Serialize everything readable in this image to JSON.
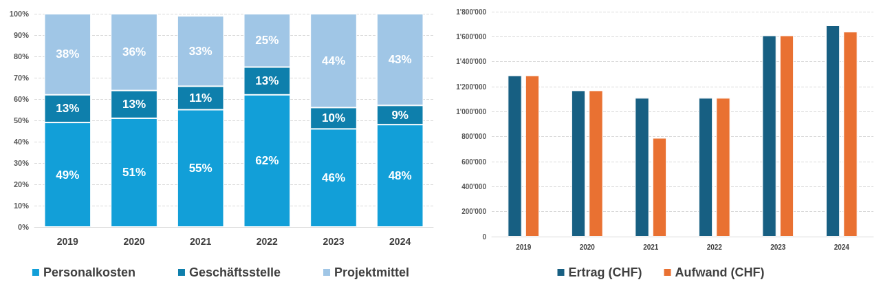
{
  "chart_data": [
    {
      "type": "bar",
      "stacked": true,
      "categories": [
        "2019",
        "2020",
        "2021",
        "2022",
        "2023",
        "2024"
      ],
      "series": [
        {
          "name": "Personalkosten",
          "color": "#129fd8",
          "values": [
            49,
            51,
            55,
            62,
            46,
            48
          ],
          "value_labels": [
            "49%",
            "51%",
            "55%",
            "62%",
            "46%",
            "48%"
          ]
        },
        {
          "name": "Geschäftsstelle",
          "color": "#0e7fac",
          "values": [
            13,
            13,
            11,
            13,
            10,
            9
          ],
          "value_labels": [
            "13%",
            "13%",
            "11%",
            "13%",
            "10%",
            "9%"
          ]
        },
        {
          "name": "Projektmittel",
          "color": "#a0c6e6",
          "values": [
            38,
            36,
            33,
            25,
            44,
            43
          ],
          "value_labels": [
            "38%",
            "36%",
            "33%",
            "25%",
            "44%",
            "43%"
          ]
        }
      ],
      "ylim": [
        0,
        100
      ],
      "yticks": [
        {
          "value": 0,
          "label": "0%"
        },
        {
          "value": 10,
          "label": "10%"
        },
        {
          "value": 20,
          "label": "20%"
        },
        {
          "value": 30,
          "label": "30%"
        },
        {
          "value": 40,
          "label": "40%"
        },
        {
          "value": 50,
          "label": "50%"
        },
        {
          "value": 60,
          "label": "60%"
        },
        {
          "value": 70,
          "label": "70%"
        },
        {
          "value": 80,
          "label": "80%"
        },
        {
          "value": 90,
          "label": "90%"
        },
        {
          "value": 100,
          "label": "100%"
        }
      ],
      "grid": "y",
      "legend": "bottom"
    },
    {
      "type": "bar",
      "categories": [
        "2019",
        "2020",
        "2021",
        "2022",
        "2023",
        "2024"
      ],
      "series": [
        {
          "name": "Ertrag (CHF)",
          "color": "#175f82",
          "values": [
            1290000,
            1170000,
            1110000,
            1110000,
            1610000,
            1690000
          ]
        },
        {
          "name": "Aufwand (CHF)",
          "color": "#e97132",
          "values": [
            1290000,
            1170000,
            790000,
            1110000,
            1610000,
            1640000
          ]
        }
      ],
      "ylim": [
        0,
        1800000
      ],
      "yticks": [
        0,
        {
          "value": 200000,
          "label": "200'000"
        },
        {
          "value": 400000,
          "label": "400'000"
        },
        {
          "value": 600000,
          "label": "600'000"
        },
        {
          "value": 800000,
          "label": "800'000"
        },
        {
          "value": 1000000,
          "label": "1'000'000"
        },
        {
          "value": 1200000,
          "label": "1'200'000"
        },
        {
          "value": 1400000,
          "label": "1'400'000"
        },
        {
          "value": 1600000,
          "label": "1'600'000"
        },
        {
          "value": 1800000,
          "label": "1'800'000"
        }
      ],
      "grid": "y",
      "legend": "bottom"
    }
  ]
}
